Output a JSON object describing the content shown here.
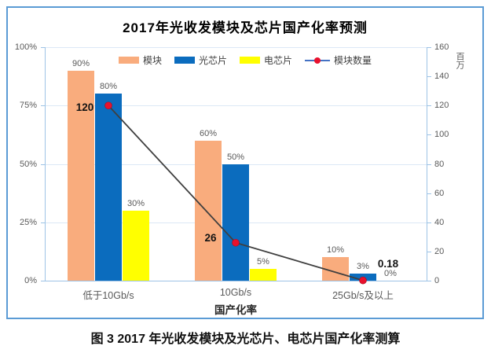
{
  "page": {
    "caption": "图 3 2017 年光收发模块及光芯片、电芯片国产化率测算"
  },
  "chart_data": {
    "type": "bar",
    "title": "2017年光收发模块及芯片国产化率预测",
    "categories": [
      "低于10Gb/s",
      "10Gb/s",
      "25Gb/s及以上"
    ],
    "xlabel": "国产化率",
    "legend_position": "top",
    "grid": "horizontal",
    "left_axis": {
      "min": 0,
      "max": 100,
      "tick_values": [
        0,
        25,
        50,
        75,
        100
      ],
      "tick_labels": [
        "0%",
        "25%",
        "50%",
        "75%",
        "100%"
      ]
    },
    "right_axis": {
      "min": 0,
      "max": 160,
      "ticks": [
        0,
        20,
        40,
        60,
        80,
        100,
        120,
        140,
        160
      ],
      "unit": "百万"
    },
    "gridline_values": [
      25,
      50,
      75,
      100
    ],
    "series": [
      {
        "key": "module",
        "name": "模块",
        "type": "bar",
        "color": "#F9AC7D",
        "values": [
          90,
          60,
          10
        ],
        "labels": [
          "90%",
          "60%",
          "10%"
        ]
      },
      {
        "key": "optical-chip",
        "name": "光芯片",
        "type": "bar",
        "color": "#0B6CBE",
        "values": [
          80,
          50,
          3
        ],
        "labels": [
          "80%",
          "50%",
          "3%"
        ]
      },
      {
        "key": "electrical-chip",
        "name": "电芯片",
        "type": "bar",
        "color": "#FFFF00",
        "values": [
          30,
          5,
          0
        ],
        "labels": [
          "30%",
          "5%",
          "0%"
        ]
      },
      {
        "key": "module-count",
        "name": "模块数量",
        "type": "line",
        "axis": "right",
        "color": "#3F3F3F",
        "marker_color": "#E8112D",
        "legend_line_color": "#4472C4",
        "values": [
          120,
          26,
          0.18
        ],
        "labels": [
          "120",
          "26",
          "0.18"
        ]
      }
    ]
  }
}
